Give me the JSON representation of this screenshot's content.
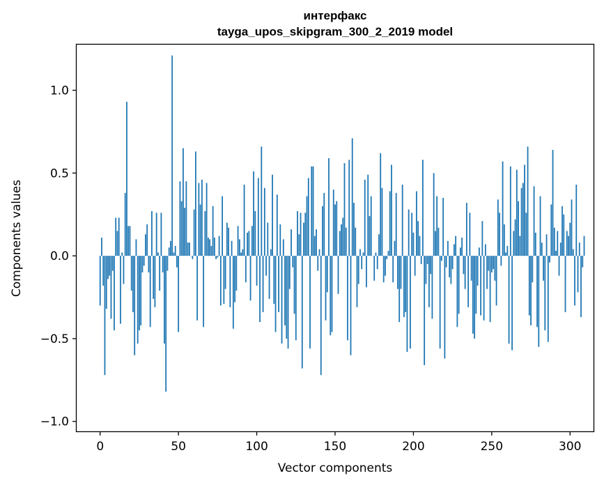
{
  "chart_data": {
    "type": "bar",
    "title": "интерфакс",
    "subtitle": "tayga_upos_skipgram_300_2_2019 model",
    "xlabel": "Vector components",
    "ylabel": "Components values",
    "xlim": [
      -15,
      315
    ],
    "ylim": [
      -1.06,
      1.28
    ],
    "xticks": [
      0,
      50,
      100,
      150,
      200,
      250,
      300
    ],
    "xtick_labels": [
      "0",
      "50",
      "100",
      "150",
      "200",
      "250",
      "300"
    ],
    "yticks": [
      -1.0,
      -0.5,
      0.0,
      0.5,
      1.0
    ],
    "ytick_labels": [
      "−1.0",
      "−0.5",
      "0.0",
      "0.5",
      "1.0"
    ],
    "bar_color": "#1f77b4",
    "grid": false,
    "values": [
      -0.3,
      0.11,
      -0.18,
      -0.72,
      -0.32,
      -0.14,
      -0.12,
      -0.38,
      -0.09,
      -0.45,
      0.23,
      0.15,
      0.23,
      -0.41,
      0.02,
      -0.17,
      0.38,
      0.93,
      0.18,
      0.18,
      -0.21,
      -0.34,
      -0.6,
      0.1,
      -0.53,
      -0.45,
      -0.42,
      -0.1,
      -0.06,
      0.13,
      0.19,
      -0.1,
      -0.43,
      0.27,
      -0.26,
      -0.31,
      0.26,
      0.02,
      -0.21,
      0.26,
      -0.1,
      -0.53,
      -0.82,
      -0.09,
      0.05,
      0.09,
      1.21,
      0.02,
      0.06,
      -0.07,
      -0.46,
      0.45,
      0.33,
      0.65,
      0.29,
      0.45,
      0.08,
      0.08,
      0.0,
      -0.02,
      0.28,
      0.63,
      -0.39,
      0.44,
      0.31,
      0.46,
      -0.43,
      0.27,
      0.44,
      0.11,
      0.1,
      0.06,
      0.3,
      0.11,
      -0.02,
      -0.01,
      0.12,
      -0.3,
      0.36,
      -0.29,
      -0.2,
      0.2,
      0.17,
      -0.31,
      0.09,
      -0.44,
      -0.28,
      -0.21,
      0.18,
      0.1,
      0.02,
      0.04,
      0.43,
      -0.16,
      0.14,
      0.15,
      -0.27,
      0.18,
      0.51,
      0.27,
      -0.18,
      0.47,
      -0.4,
      0.66,
      -0.34,
      0.41,
      -0.12,
      0.2,
      -0.26,
      0.04,
      0.49,
      -0.29,
      -0.46,
      0.37,
      -0.34,
      0.19,
      -0.53,
      0.1,
      -0.42,
      -0.5,
      -0.56,
      -0.2,
      0.16,
      -0.07,
      -0.35,
      -0.51,
      0.27,
      0.13,
      0.26,
      -0.68,
      0.2,
      0.26,
      0.36,
      0.47,
      -0.56,
      0.54,
      0.54,
      0.12,
      0.16,
      -0.09,
      0.04,
      -0.72,
      0.3,
      0.38,
      -0.39,
      -0.22,
      0.59,
      -0.48,
      -0.46,
      0.4,
      0.31,
      0.33,
      -0.23,
      0.15,
      0.19,
      0.23,
      0.56,
      0.17,
      -0.51,
      0.58,
      -0.6,
      0.71,
      0.32,
      0.17,
      -0.31,
      -0.17,
      0.04,
      -0.08,
      0.02,
      0.46,
      -0.19,
      0.49,
      0.24,
      0.36,
      0.0,
      -0.15,
      0.02,
      -0.08,
      0.13,
      0.62,
      0.41,
      -0.16,
      -0.12,
      -0.02,
      0.03,
      0.39,
      0.55,
      -0.16,
      0.09,
      0.38,
      -0.2,
      -0.4,
      -0.2,
      0.43,
      -0.37,
      -0.34,
      -0.58,
      0.28,
      -0.56,
      0.26,
      0.14,
      -0.12,
      0.39,
      0.21,
      0.12,
      -0.05,
      0.58,
      -0.66,
      -0.17,
      -0.05,
      -0.31,
      -0.11,
      -0.38,
      0.5,
      0.15,
      0.36,
      0.17,
      -0.56,
      -0.03,
      0.35,
      -0.62,
      -0.07,
      0.09,
      -0.13,
      -0.17,
      -0.08,
      0.07,
      0.12,
      -0.43,
      -0.35,
      0.05,
      0.11,
      -0.11,
      -0.2,
      0.32,
      -0.31,
      0.26,
      -0.15,
      -0.47,
      -0.5,
      -0.35,
      -0.18,
      0.05,
      -0.36,
      0.21,
      -0.39,
      0.07,
      -0.2,
      -0.09,
      -0.4,
      -0.1,
      -0.08,
      -0.15,
      -0.3,
      0.34,
      0.26,
      -0.06,
      0.57,
      0.19,
      0.02,
      0.06,
      -0.53,
      0.54,
      -0.57,
      0.15,
      0.22,
      0.52,
      0.33,
      0.12,
      0.41,
      0.44,
      0.55,
      0.26,
      0.66,
      -0.36,
      -0.42,
      -0.16,
      0.42,
      0.14,
      -0.43,
      -0.55,
      0.36,
      0.08,
      -0.15,
      -0.45,
      0.13,
      -0.52,
      -0.04,
      0.31,
      0.64,
      0.17,
      0.03,
      0.15,
      -0.12,
      0.08,
      0.3,
      0.25,
      -0.34,
      0.15,
      0.12,
      0.2,
      0.34,
      0.04,
      -0.3,
      0.43,
      -0.22,
      0.08,
      -0.37,
      -0.07,
      0.12
    ]
  }
}
